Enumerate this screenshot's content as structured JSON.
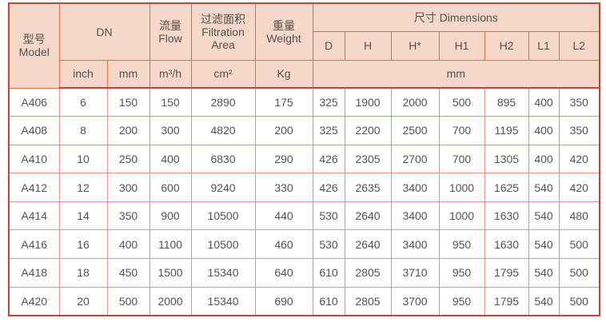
{
  "table": {
    "header": {
      "model_zh": "型号",
      "model_en": "Model",
      "dn": "DN",
      "flow_zh": "流量",
      "flow_en": "Flow",
      "filtration_zh": "过滤面积",
      "filtration_en1": "Filtration",
      "filtration_en2": "Area",
      "weight_zh": "重量",
      "weight_en": "Weight",
      "dimensions": "尺寸 Dimensions",
      "dim_cols": [
        "D",
        "H",
        "H*",
        "H1",
        "H2",
        "L1",
        "L2"
      ],
      "units": {
        "inch": "inch",
        "mm": "mm",
        "flow": "m³/h",
        "area": "cm²",
        "weight": "Kg",
        "dims": "mm"
      }
    },
    "columns_semantic": [
      "model",
      "dn_inch",
      "dn_mm",
      "flow_m3h",
      "filtration_area_cm2",
      "weight_kg",
      "D",
      "H",
      "H_star",
      "H1",
      "H2",
      "L1",
      "L2"
    ],
    "rows": [
      [
        "A406",
        "6",
        "150",
        "150",
        "2890",
        "175",
        "325",
        "1900",
        "2000",
        "500",
        "895",
        "400",
        "350"
      ],
      [
        "A408",
        "8",
        "200",
        "300",
        "4820",
        "200",
        "325",
        "2200",
        "2500",
        "700",
        "1195",
        "400",
        "350"
      ],
      [
        "A410",
        "10",
        "250",
        "400",
        "6830",
        "290",
        "426",
        "2305",
        "2700",
        "700",
        "1305",
        "400",
        "420"
      ],
      [
        "A412",
        "12",
        "300",
        "600",
        "9240",
        "330",
        "426",
        "2635",
        "3400",
        "1000",
        "1625",
        "540",
        "420"
      ],
      [
        "A414",
        "14",
        "350",
        "900",
        "10500",
        "440",
        "530",
        "2640",
        "3400",
        "1000",
        "1630",
        "540",
        "480"
      ],
      [
        "A416",
        "16",
        "400",
        "1100",
        "10500",
        "460",
        "530",
        "2640",
        "3400",
        "950",
        "1630",
        "540",
        "500"
      ],
      [
        "A418",
        "18",
        "450",
        "1500",
        "15340",
        "640",
        "610",
        "2805",
        "3710",
        "950",
        "1795",
        "540",
        "500"
      ],
      [
        "A420",
        "20",
        "500",
        "2000",
        "15340",
        "690",
        "610",
        "2805",
        "3700",
        "950",
        "1795",
        "540",
        "500"
      ]
    ],
    "colors": {
      "header_background": "#f6d7c8",
      "outer_border": "#c84137",
      "header_grid": "#dd6c4d",
      "data_grid": "#ee8c8c",
      "text": "#555351"
    }
  }
}
